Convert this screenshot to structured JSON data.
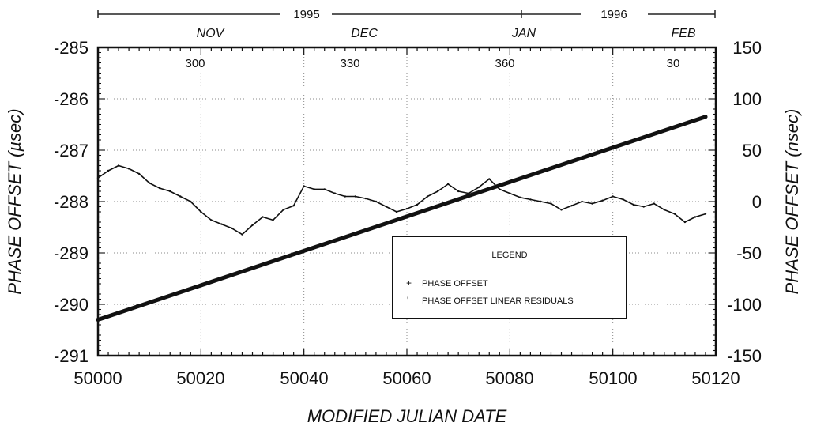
{
  "chart_data": {
    "type": "line",
    "xlabel": "MODIFIED JULIAN DATE",
    "ylabel_left": "PHASE OFFSET (µsec)",
    "ylabel_right": "PHASE OFFSET (nsec)",
    "xlim": [
      50000,
      50120
    ],
    "ylim_left": [
      -291,
      -285
    ],
    "ylim_right": [
      -150,
      150
    ],
    "x_ticks": [
      "50000",
      "50020",
      "50040",
      "50060",
      "50080",
      "50100",
      "50120"
    ],
    "y_ticks_left": [
      "-285",
      "-286",
      "-287",
      "-288",
      "-289",
      "-290",
      "-291"
    ],
    "y_ticks_right": [
      "150",
      "100",
      "50",
      "0",
      "-50",
      "-100",
      "-150"
    ],
    "grid": true,
    "top_axis": {
      "years": [
        "1995",
        "1996"
      ],
      "months": [
        {
          "label": "NOV",
          "mjd": 50022
        },
        {
          "label": "DEC",
          "mjd": 50052
        },
        {
          "label": "JAN",
          "mjd": 50083
        },
        {
          "label": "FEB",
          "mjd": 50114
        }
      ],
      "day_of_year": [
        {
          "label": "300",
          "mjd": 50019
        },
        {
          "label": "330",
          "mjd": 50049
        },
        {
          "label": "360",
          "mjd": 50079
        },
        {
          "label": "30",
          "mjd": 50114
        }
      ]
    },
    "legend": {
      "title": "LEGEND",
      "position": "lower-right",
      "entries": [
        "PHASE OFFSET",
        "PHASE OFFSET LINEAR RESIDUALS"
      ]
    },
    "series": [
      {
        "name": "PHASE OFFSET",
        "axis": "left",
        "units": "µsec",
        "x": [
          50000,
          50020,
          50040,
          50060,
          50080,
          50100,
          50118
        ],
        "y": [
          -290.3,
          -289.63,
          -288.96,
          -288.29,
          -287.62,
          -286.95,
          -286.35
        ]
      },
      {
        "name": "PHASE OFFSET LINEAR RESIDUALS",
        "axis": "right",
        "units": "nsec",
        "x": [
          50000,
          50002,
          50004,
          50006,
          50008,
          50010,
          50012,
          50014,
          50016,
          50018,
          50020,
          50022,
          50024,
          50026,
          50028,
          50030,
          50032,
          50034,
          50036,
          50038,
          50040,
          50042,
          50044,
          50046,
          50048,
          50050,
          50052,
          50054,
          50056,
          50058,
          50060,
          50062,
          50064,
          50066,
          50068,
          50070,
          50072,
          50074,
          50076,
          50078,
          50080,
          50082,
          50084,
          50086,
          50088,
          50090,
          50092,
          50094,
          50096,
          50098,
          50100,
          50102,
          50104,
          50106,
          50108,
          50110,
          50112,
          50114,
          50116,
          50118
        ],
        "y": [
          23,
          30,
          35,
          32,
          27,
          18,
          13,
          10,
          5,
          0,
          -10,
          -18,
          -22,
          -26,
          -32,
          -23,
          -15,
          -18,
          -8,
          -4,
          15,
          12,
          12,
          8,
          5,
          5,
          3,
          0,
          -5,
          -10,
          -7,
          -3,
          5,
          10,
          17,
          10,
          8,
          14,
          22,
          12,
          8,
          4,
          2,
          0,
          -2,
          -8,
          -4,
          0,
          -2,
          1,
          5,
          2,
          -3,
          -5,
          -2,
          -8,
          -12,
          -20,
          -15,
          -12
        ]
      }
    ]
  }
}
